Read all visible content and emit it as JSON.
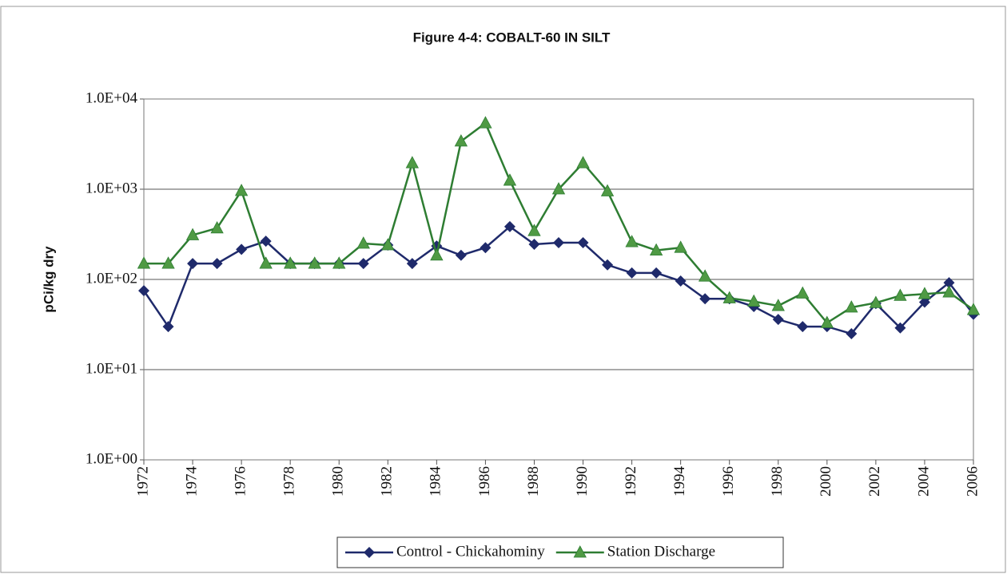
{
  "chart_data": {
    "type": "line",
    "title": "Figure 4-4: COBALT-60 IN SILT",
    "y_label": "pCi/kg dry",
    "x": [
      1972,
      1973,
      1974,
      1975,
      1976,
      1977,
      1978,
      1979,
      1980,
      1981,
      1982,
      1983,
      1984,
      1985,
      1986,
      1987,
      1988,
      1989,
      1990,
      1991,
      1992,
      1993,
      1994,
      1995,
      1996,
      1997,
      1998,
      1999,
      2000,
      2001,
      2002,
      2003,
      2004,
      2005,
      2006
    ],
    "series": [
      {
        "name": "Control - Chickahominy",
        "color": "#1f2a6b",
        "marker": "diamond",
        "values": [
          75,
          30,
          150,
          150,
          215,
          265,
          150,
          150,
          150,
          150,
          240,
          150,
          235,
          185,
          225,
          385,
          245,
          255,
          255,
          145,
          118,
          118,
          96,
          61,
          61,
          50,
          36,
          30,
          30,
          25,
          54,
          29,
          56,
          92,
          41
        ]
      },
      {
        "name": "Station Discharge",
        "color": "#2e7d32",
        "marker": "triangle",
        "values": [
          150,
          150,
          310,
          370,
          960,
          150,
          150,
          150,
          150,
          250,
          240,
          1950,
          185,
          3400,
          5400,
          1250,
          345,
          1000,
          1950,
          950,
          260,
          210,
          225,
          108,
          62,
          57,
          51,
          70,
          33,
          49,
          55,
          66,
          69,
          72,
          46
        ]
      }
    ],
    "log_y": true,
    "ylim": [
      1,
      10000
    ],
    "yticks": [
      {
        "value": 1,
        "label": "1.0E+00"
      },
      {
        "value": 10,
        "label": "1.0E+01"
      },
      {
        "value": 100,
        "label": "1.0E+02"
      },
      {
        "value": 1000,
        "label": "1.0E+03"
      },
      {
        "value": 10000,
        "label": "1.0E+04"
      }
    ],
    "xlim": [
      1972,
      2006
    ],
    "xticks": [
      1972,
      1974,
      1976,
      1978,
      1980,
      1982,
      1984,
      1986,
      1988,
      1990,
      1992,
      1994,
      1996,
      1998,
      2000,
      2002,
      2004,
      2006
    ],
    "grid": true,
    "legend": "bottom"
  }
}
